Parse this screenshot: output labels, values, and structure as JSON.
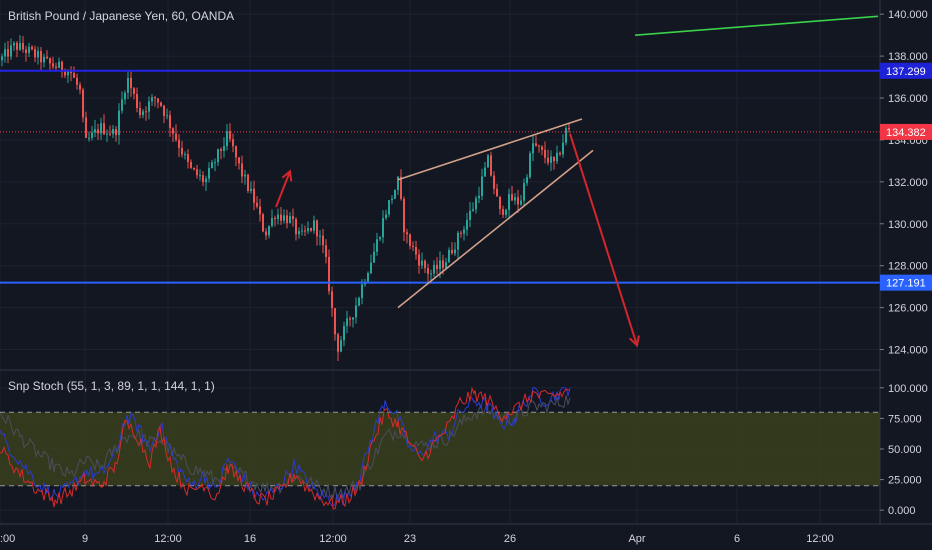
{
  "chart_data": [
    {
      "type": "candlestick",
      "title": "British Pound / Japanese Yen, 60, OANDA",
      "ylim": [
        123.5,
        140.2
      ],
      "yticks": [
        124,
        126,
        128,
        130,
        132,
        134,
        136,
        138,
        140
      ],
      "ytick_labels": [
        "124.000",
        "126.000",
        "128.000",
        "130.000",
        "132.000",
        "134.000",
        "136.000",
        "138.000",
        "140.000"
      ],
      "x_ticks": [
        {
          "t": 0,
          "label": ":00"
        },
        {
          "t": 85,
          "label": "9"
        },
        {
          "t": 168,
          "label": "12:00"
        },
        {
          "t": 250,
          "label": "16"
        },
        {
          "t": 333,
          "label": "12:00"
        },
        {
          "t": 410,
          "label": "23"
        },
        {
          "t": 510,
          "label": "26"
        },
        {
          "t": 637,
          "label": "Apr"
        },
        {
          "t": 737,
          "label": "6"
        },
        {
          "t": 820,
          "label": "12:00"
        }
      ],
      "price_path": [
        [
          0,
          137.8
        ],
        [
          15,
          138.5
        ],
        [
          30,
          138.2
        ],
        [
          50,
          137.6
        ],
        [
          70,
          137.3
        ],
        [
          80,
          136.3
        ],
        [
          85,
          133.8
        ],
        [
          100,
          134.6
        ],
        [
          115,
          134.3
        ],
        [
          127,
          137.0
        ],
        [
          140,
          135.3
        ],
        [
          155,
          136.0
        ],
        [
          160,
          135.8
        ],
        [
          175,
          134.2
        ],
        [
          190,
          132.6
        ],
        [
          205,
          132.0
        ],
        [
          215,
          133.0
        ],
        [
          228,
          134.2
        ],
        [
          240,
          132.6
        ],
        [
          255,
          131.0
        ],
        [
          265,
          129.5
        ],
        [
          275,
          130.5
        ],
        [
          290,
          130.2
        ],
        [
          300,
          129.3
        ],
        [
          315,
          130.0
        ],
        [
          325,
          128.5
        ],
        [
          333,
          125.5
        ],
        [
          337,
          124.0
        ],
        [
          345,
          125.0
        ],
        [
          355,
          126.0
        ],
        [
          365,
          127.5
        ],
        [
          375,
          128.8
        ],
        [
          385,
          130.5
        ],
        [
          398,
          132.0
        ],
        [
          405,
          129.5
        ],
        [
          420,
          128.2
        ],
        [
          430,
          127.6
        ],
        [
          445,
          128.2
        ],
        [
          460,
          129.5
        ],
        [
          475,
          131.0
        ],
        [
          488,
          133.0
        ],
        [
          500,
          130.5
        ],
        [
          510,
          131.2
        ],
        [
          520,
          131.0
        ],
        [
          533,
          133.8
        ],
        [
          545,
          133.2
        ],
        [
          555,
          132.8
        ],
        [
          562,
          133.8
        ],
        [
          567,
          134.6
        ],
        [
          570,
          134.38
        ]
      ],
      "horizontal_lines": [
        {
          "name": "upper-blue-level",
          "price": 137.299,
          "label": "137.299",
          "color": "#2323e8",
          "badge_color": "#1e22d6"
        },
        {
          "name": "lower-blue-level",
          "price": 127.191,
          "label": "127.191",
          "color": "#2962ff",
          "badge_color": "#2962ff"
        },
        {
          "name": "last-price",
          "price": 134.382,
          "label": "134.382",
          "color": "#f23645",
          "badge_color": "#f23645",
          "dotted": true
        }
      ],
      "drawings": [
        {
          "name": "upper-channel-line",
          "color": "#d1a08a",
          "points": [
            [
              398,
              132.1
            ],
            [
              582,
              135.0
            ]
          ]
        },
        {
          "name": "lower-channel-line",
          "color": "#d1a08a",
          "points": [
            [
              398,
              126.0
            ],
            [
              593,
              133.5
            ]
          ]
        },
        {
          "name": "green-trend-line",
          "color": "#3bd14a",
          "points": [
            [
              635,
              139.0
            ],
            [
              878,
              139.9
            ]
          ]
        },
        {
          "name": "red-up-arrow",
          "color": "#d4262c",
          "points": [
            [
              276,
              130.8
            ],
            [
              290,
              132.5
            ]
          ],
          "arrow": true
        },
        {
          "name": "red-down-arrow",
          "color": "#d4262c",
          "points": [
            [
              570,
              134.3
            ],
            [
              637,
              124.2
            ]
          ],
          "arrow": true
        }
      ]
    },
    {
      "type": "line",
      "title": "Snp Stoch (55, 1, 3, 89, 1, 1, 144, 1, 1)",
      "ylim": [
        -8,
        108
      ],
      "yticks": [
        0,
        25,
        50,
        75,
        100
      ],
      "ytick_labels": [
        "0.000",
        "25.000",
        "50.000",
        "75.000",
        "100.000"
      ],
      "bands": {
        "upper": 80,
        "lower": 20,
        "fill": "#3a3f1c"
      },
      "series": [
        {
          "color": "#d82a2a",
          "points": [
            [
              0,
              50
            ],
            [
              20,
              30
            ],
            [
              40,
              15
            ],
            [
              55,
              8
            ],
            [
              70,
              15
            ],
            [
              85,
              25
            ],
            [
              100,
              20
            ],
            [
              115,
              35
            ],
            [
              125,
              70
            ],
            [
              135,
              65
            ],
            [
              150,
              40
            ],
            [
              160,
              65
            ],
            [
              175,
              30
            ],
            [
              190,
              15
            ],
            [
              205,
              22
            ],
            [
              215,
              10
            ],
            [
              228,
              35
            ],
            [
              240,
              25
            ],
            [
              255,
              10
            ],
            [
              265,
              8
            ],
            [
              280,
              15
            ],
            [
              295,
              30
            ],
            [
              305,
              20
            ],
            [
              320,
              10
            ],
            [
              333,
              5
            ],
            [
              345,
              8
            ],
            [
              360,
              20
            ],
            [
              370,
              50
            ],
            [
              385,
              80
            ],
            [
              398,
              70
            ],
            [
              410,
              55
            ],
            [
              420,
              40
            ],
            [
              435,
              55
            ],
            [
              450,
              70
            ],
            [
              460,
              88
            ],
            [
              475,
              95
            ],
            [
              488,
              90
            ],
            [
              500,
              78
            ],
            [
              515,
              82
            ],
            [
              533,
              95
            ],
            [
              545,
              92
            ],
            [
              560,
              95
            ],
            [
              570,
              98
            ]
          ]
        },
        {
          "color": "#2b3bd1",
          "points": [
            [
              0,
              62
            ],
            [
              20,
              40
            ],
            [
              40,
              20
            ],
            [
              55,
              12
            ],
            [
              70,
              18
            ],
            [
              85,
              32
            ],
            [
              100,
              28
            ],
            [
              115,
              45
            ],
            [
              125,
              75
            ],
            [
              135,
              72
            ],
            [
              150,
              50
            ],
            [
              160,
              70
            ],
            [
              175,
              40
            ],
            [
              190,
              20
            ],
            [
              205,
              28
            ],
            [
              215,
              15
            ],
            [
              228,
              42
            ],
            [
              240,
              30
            ],
            [
              255,
              12
            ],
            [
              265,
              10
            ],
            [
              280,
              20
            ],
            [
              295,
              38
            ],
            [
              305,
              25
            ],
            [
              320,
              12
            ],
            [
              333,
              8
            ],
            [
              345,
              10
            ],
            [
              360,
              28
            ],
            [
              370,
              55
            ],
            [
              385,
              90
            ],
            [
              398,
              75
            ],
            [
              410,
              50
            ],
            [
              420,
              45
            ],
            [
              435,
              60
            ],
            [
              450,
              62
            ],
            [
              460,
              80
            ],
            [
              475,
              90
            ],
            [
              488,
              85
            ],
            [
              500,
              70
            ],
            [
              515,
              75
            ],
            [
              533,
              98
            ],
            [
              545,
              90
            ],
            [
              560,
              96
            ],
            [
              570,
              100
            ]
          ]
        },
        {
          "color": "#4a4f5c",
          "points": [
            [
              0,
              80
            ],
            [
              20,
              60
            ],
            [
              40,
              45
            ],
            [
              55,
              35
            ],
            [
              70,
              28
            ],
            [
              85,
              40
            ],
            [
              100,
              35
            ],
            [
              115,
              50
            ],
            [
              125,
              60
            ],
            [
              135,
              62
            ],
            [
              150,
              55
            ],
            [
              160,
              58
            ],
            [
              175,
              45
            ],
            [
              190,
              35
            ],
            [
              205,
              30
            ],
            [
              215,
              25
            ],
            [
              228,
              32
            ],
            [
              240,
              30
            ],
            [
              255,
              22
            ],
            [
              265,
              18
            ],
            [
              280,
              20
            ],
            [
              295,
              28
            ],
            [
              305,
              25
            ],
            [
              320,
              18
            ],
            [
              333,
              15
            ],
            [
              345,
              15
            ],
            [
              360,
              22
            ],
            [
              370,
              38
            ],
            [
              385,
              60
            ],
            [
              398,
              65
            ],
            [
              410,
              60
            ],
            [
              420,
              52
            ],
            [
              435,
              55
            ],
            [
              450,
              60
            ],
            [
              460,
              70
            ],
            [
              475,
              80
            ],
            [
              488,
              82
            ],
            [
              500,
              75
            ],
            [
              515,
              75
            ],
            [
              533,
              85
            ],
            [
              545,
              85
            ],
            [
              560,
              88
            ],
            [
              570,
              92
            ]
          ]
        }
      ]
    }
  ]
}
